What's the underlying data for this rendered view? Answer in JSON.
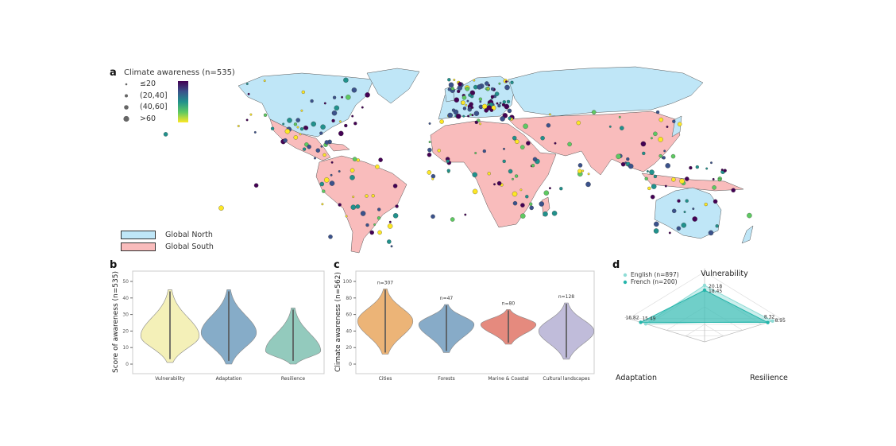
{
  "panel_a": {
    "label": "a",
    "title": "Climate awareness (n=535)",
    "size_legend": [
      "≤20",
      "(20,40]",
      "(40,60]",
      ">60"
    ],
    "colorscale": [
      "#fde725",
      "#5ec962",
      "#21918c",
      "#3b528b",
      "#440154"
    ],
    "region_legend": [
      {
        "label": "Global North",
        "color": "#bfe6f7"
      },
      {
        "label": "Global South",
        "color": "#f9bcbc"
      }
    ]
  },
  "chart_data": [
    {
      "panel": "b",
      "type": "violin",
      "ylabel": "Score of awareness (n=535)",
      "ylim": [
        0,
        50
      ],
      "yticks": [
        "0",
        "10",
        "20",
        "30",
        "40",
        "50"
      ],
      "categories": [
        "Vulnerability",
        "Adaptation",
        "Resilience"
      ],
      "colors": [
        "#f4f0b8",
        "#86acc8",
        "#93cabd"
      ],
      "range": [
        [
          1,
          45
        ],
        [
          0,
          45
        ],
        [
          0,
          34
        ]
      ],
      "mode": [
        17,
        19,
        8
      ]
    },
    {
      "panel": "c",
      "type": "violin",
      "ylabel": "Climate awareness (n=562)",
      "ylim": [
        0,
        100
      ],
      "yticks": [
        "0",
        "20",
        "40",
        "60",
        "80",
        "100"
      ],
      "categories": [
        "Cities",
        "Forests",
        "Marine & Coastal",
        "Cultural landscapes"
      ],
      "n_labels": [
        "n=307",
        "n=47",
        "n=80",
        "n=128"
      ],
      "colors": [
        "#ecb477",
        "#87abc8",
        "#e58a7e",
        "#c0bcda"
      ],
      "range": [
        [
          12,
          91
        ],
        [
          14,
          72
        ],
        [
          24,
          66
        ],
        [
          6,
          74
        ]
      ],
      "mode": [
        52,
        48,
        48,
        40
      ]
    },
    {
      "panel": "d",
      "type": "radar",
      "axes": [
        "Vulnerability",
        "Adaptation",
        "Resilience"
      ],
      "series": [
        {
          "name": "English (n=897)",
          "values": [
            20.18,
            15.49,
            8.95
          ],
          "color": "#8fdcd6"
        },
        {
          "name": "French (n=200)",
          "values": [
            18.45,
            16.82,
            8.32
          ],
          "color": "#25b5ab"
        }
      ],
      "value_labels": [
        "20.18",
        "18.45",
        "15.49",
        "16.82",
        "8.32",
        "8.95"
      ]
    }
  ],
  "panel_labels": {
    "b": "b",
    "c": "c",
    "d": "d"
  }
}
